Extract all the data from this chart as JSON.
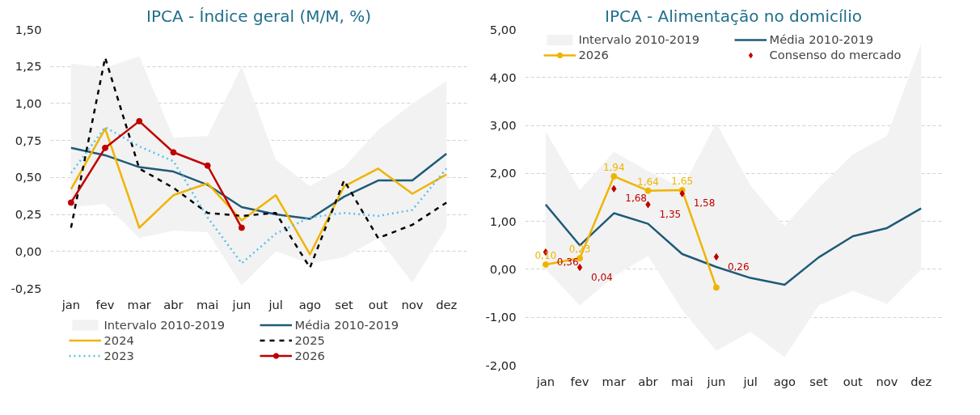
{
  "chart_data": [
    {
      "type": "line",
      "title": "IPCA - Índice geral (M/M, %)",
      "categories": [
        "jan",
        "fev",
        "mar",
        "abr",
        "mai",
        "jun",
        "jul",
        "ago",
        "set",
        "out",
        "nov",
        "dez"
      ],
      "ylim": [
        -0.25,
        1.5
      ],
      "yticks": [
        {
          "value": -0.25,
          "label": "-0,25"
        },
        {
          "value": 0,
          "label": "0,00"
        },
        {
          "value": 0.25,
          "label": "0,25"
        },
        {
          "value": 0.5,
          "label": "0,50"
        },
        {
          "value": 0.75,
          "label": "0,75"
        },
        {
          "value": 1.0,
          "label": "1,00"
        },
        {
          "value": 1.25,
          "label": "1,25"
        },
        {
          "value": 1.5,
          "label": "1,50"
        }
      ],
      "grid": "y",
      "legend": "bottom",
      "series": [
        {
          "name": "Intervalo 2010-2019",
          "color": "#f2f2f2",
          "values": [
            null,
            null,
            null,
            null,
            null,
            null,
            null,
            null,
            null,
            null,
            null,
            null
          ],
          "lower": [
            0.3,
            0.32,
            0.09,
            0.14,
            0.13,
            -0.23,
            0.0,
            -0.08,
            -0.04,
            0.09,
            -0.21,
            0.16
          ],
          "upper": [
            1.27,
            1.24,
            1.32,
            0.77,
            0.78,
            1.25,
            0.62,
            0.44,
            0.57,
            0.82,
            1.0,
            1.15
          ]
        },
        {
          "name": "Média 2010-2019",
          "color": "#1f5a78",
          "line_style": "solid",
          "values": [
            0.7,
            0.65,
            0.57,
            0.54,
            0.45,
            0.3,
            0.25,
            0.22,
            0.37,
            0.48,
            0.48,
            0.66
          ]
        },
        {
          "name": "2024",
          "color": "#f0b400",
          "line_style": "solid",
          "values": [
            0.42,
            0.83,
            0.16,
            0.38,
            0.46,
            0.21,
            0.38,
            -0.02,
            0.44,
            0.56,
            0.39,
            0.52
          ]
        },
        {
          "name": "2025",
          "color": "#000000",
          "line_style": "dashed",
          "values": [
            0.16,
            1.31,
            0.56,
            0.43,
            0.26,
            0.24,
            0.26,
            -0.11,
            0.48,
            0.09,
            0.18,
            0.33
          ]
        },
        {
          "name": "2023",
          "color": "#5bc0e8",
          "line_style": "dotted",
          "values": [
            0.53,
            0.84,
            0.71,
            0.61,
            0.23,
            -0.08,
            0.12,
            0.23,
            0.26,
            0.24,
            0.28,
            0.56
          ]
        },
        {
          "name": "2026",
          "color": "#c00000",
          "line_style": "solid",
          "marker": "circle",
          "values": [
            0.33,
            0.7,
            0.88,
            0.67,
            0.58,
            0.16,
            null,
            null,
            null,
            null,
            null,
            null
          ]
        }
      ]
    },
    {
      "type": "line",
      "title": "IPCA - Alimentação no domicílio",
      "categories": [
        "jan",
        "fev",
        "mar",
        "abr",
        "mai",
        "jun",
        "jul",
        "ago",
        "set",
        "out",
        "nov",
        "dez"
      ],
      "ylim": [
        -2.0,
        5.0
      ],
      "yticks": [
        {
          "value": -2,
          "label": "-2,00"
        },
        {
          "value": -1,
          "label": "-1,00"
        },
        {
          "value": 0,
          "label": "0,00"
        },
        {
          "value": 1,
          "label": "1,00"
        },
        {
          "value": 2,
          "label": "2,00"
        },
        {
          "value": 3,
          "label": "3,00"
        },
        {
          "value": 4,
          "label": "4,00"
        },
        {
          "value": 5,
          "label": "5,00"
        }
      ],
      "grid": "y",
      "legend": "top",
      "series": [
        {
          "name": "Intervalo 2010-2019",
          "color": "#f2f2f2",
          "values": [
            null,
            null,
            null,
            null,
            null,
            null,
            null,
            null,
            null,
            null,
            null,
            null
          ],
          "lower": [
            0.0,
            -0.75,
            -0.15,
            0.28,
            -0.85,
            -1.7,
            -1.3,
            -1.83,
            -0.75,
            -0.45,
            -0.72,
            0.0
          ],
          "upper": [
            2.88,
            1.65,
            2.45,
            2.05,
            1.7,
            3.05,
            1.75,
            0.9,
            1.7,
            2.4,
            2.78,
            4.7
          ]
        },
        {
          "name": "Média 2010-2019",
          "color": "#1f5a78",
          "line_style": "solid",
          "values": [
            1.35,
            0.5,
            1.17,
            0.95,
            0.32,
            0.05,
            -0.18,
            -0.32,
            0.25,
            0.69,
            0.86,
            1.27
          ]
        },
        {
          "name": "2026",
          "color": "#f0b400",
          "line_style": "solid",
          "marker": "circle",
          "values": [
            0.1,
            0.23,
            1.94,
            1.64,
            1.65,
            -0.38,
            null,
            null,
            null,
            null,
            null,
            null
          ],
          "value_labels": [
            "0,10",
            "0,23",
            "1,94",
            "1,64",
            "1,65",
            null,
            null,
            null,
            null,
            null,
            null,
            null
          ]
        },
        {
          "name": "Consenso do mercado",
          "type": "scatter",
          "color": "#c00000",
          "marker": "diamond",
          "values": [
            0.36,
            0.04,
            1.68,
            1.35,
            1.58,
            0.26,
            null,
            null,
            null,
            null,
            null,
            null
          ],
          "value_labels": [
            "0,36",
            "0,04",
            "1,68",
            "1,35",
            "1,58",
            "0,26",
            null,
            null,
            null,
            null,
            null,
            null
          ]
        }
      ]
    }
  ]
}
